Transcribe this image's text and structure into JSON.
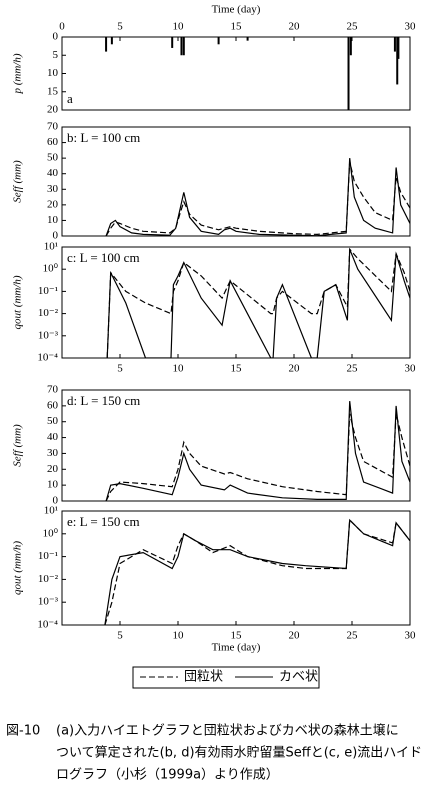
{
  "chart_data": [
    {
      "type": "hyetograph",
      "xlabel": "Time (day)",
      "ylabel": "p (mm/h)",
      "panel_label": "a",
      "xlim": [
        0,
        30
      ],
      "xticks": [
        0,
        5,
        10,
        15,
        20,
        25,
        30
      ],
      "ylim": [
        0,
        20
      ],
      "invert_y": true,
      "yticks": [
        0,
        5,
        10,
        15,
        20
      ],
      "color": "#000000",
      "x": [
        3.8,
        4.3,
        9.5,
        10.3,
        10.5,
        13.5,
        16,
        24.7,
        24.9,
        28.7,
        28.9,
        29.0
      ],
      "values": [
        4,
        2,
        3,
        5,
        5,
        2,
        1,
        20,
        5,
        4,
        13,
        6
      ]
    },
    {
      "type": "line",
      "ylabel": "Seff (mm)",
      "panel_label": "b: L = 100 cm",
      "xlim": [
        0,
        30
      ],
      "ylim": [
        0,
        70
      ],
      "yticks": [
        0,
        10,
        20,
        30,
        40,
        50,
        60,
        70
      ],
      "x": [
        3.8,
        4.2,
        4.6,
        5,
        6,
        7,
        9.3,
        9.8,
        10.2,
        10.5,
        11,
        12,
        13.5,
        14,
        14.5,
        15,
        17,
        20,
        22,
        24.5,
        24.8,
        25.2,
        26,
        27,
        28.5,
        28.8,
        29.2,
        30
      ],
      "series": [
        {
          "name": "団粒状",
          "color": "#000000",
          "dash": true,
          "values": [
            0,
            5,
            9,
            8,
            5,
            3,
            2,
            5,
            15,
            22,
            14,
            7,
            4,
            5,
            6,
            5,
            3,
            1.5,
            1,
            3,
            48,
            35,
            25,
            15,
            10,
            38,
            28,
            18
          ]
        },
        {
          "name": "カベ状",
          "color": "#000000",
          "dash": false,
          "values": [
            0,
            8,
            10,
            6,
            2,
            1,
            0.5,
            5,
            18,
            28,
            12,
            3,
            1,
            4,
            5,
            3,
            1,
            0.5,
            0.2,
            2,
            50,
            25,
            10,
            5,
            2,
            44,
            20,
            8
          ]
        }
      ]
    },
    {
      "type": "line",
      "ylabel": "qout (mm/h)",
      "panel_label": "c: L = 100 cm",
      "log_y": true,
      "xlim": [
        0,
        30
      ],
      "xticks": [
        5,
        10,
        15,
        20,
        25,
        30
      ],
      "ylim": [
        0.0001,
        10
      ],
      "yticks": [
        {
          "value": 10,
          "label": "10¹"
        },
        {
          "value": 1,
          "label": "10⁰"
        },
        {
          "value": 0.1,
          "label": "10⁻¹"
        },
        {
          "value": 0.01,
          "label": "10⁻²"
        },
        {
          "value": 0.001,
          "label": "10⁻³"
        },
        {
          "value": 0.0001,
          "label": "10⁻⁴"
        }
      ],
      "x": [
        3.9,
        4.2,
        5.5,
        7.2,
        9.4,
        9.6,
        10,
        10.5,
        12,
        13.8,
        14.5,
        18,
        18.2,
        18.5,
        19,
        21.5,
        22,
        22.6,
        23.6,
        24.6,
        24.8,
        25.5,
        28.4,
        28.8,
        29.5,
        30
      ],
      "series": [
        {
          "name": "団粒状",
          "color": "#000000",
          "dash": true,
          "values": [
            0.0001,
            0.7,
            0.1,
            0.03,
            0.01,
            0.1,
            0.3,
            2,
            0.5,
            0.05,
            0.3,
            0.01,
            0.01,
            0.05,
            0.1,
            0.01,
            0.01,
            0.1,
            0.2,
            0.02,
            8,
            3,
            0.1,
            5,
            0.7,
            0.1
          ]
        },
        {
          "name": "カベ状",
          "color": "#000000",
          "dash": false,
          "values": [
            0.0001,
            0.7,
            0.03,
            0.0001,
            0.0001,
            0.2,
            0.5,
            2,
            0.05,
            0.003,
            0.3,
            0.0001,
            0.0001,
            0.05,
            0.2,
            0.0001,
            0.0001,
            0.1,
            0.2,
            0.005,
            8,
            1,
            0.005,
            5,
            0.3,
            0.05
          ]
        }
      ]
    },
    {
      "type": "line",
      "ylabel": "Seff (mm)",
      "panel_label": "d: L = 150 cm",
      "xlim": [
        0,
        30
      ],
      "ylim": [
        0,
        70
      ],
      "yticks": [
        0,
        10,
        20,
        30,
        40,
        50,
        60,
        70
      ],
      "x": [
        3.8,
        4.2,
        5,
        7,
        9.5,
        10,
        10.5,
        11,
        12,
        14,
        14.5,
        16,
        19,
        22,
        24.5,
        24.8,
        25.3,
        26,
        28.5,
        28.8,
        29.3,
        30
      ],
      "series": [
        {
          "name": "団粒状",
          "color": "#000000",
          "dash": true,
          "values": [
            0,
            6,
            12,
            11,
            9,
            20,
            37,
            30,
            22,
            17,
            18,
            14,
            9,
            6,
            4,
            55,
            40,
            25,
            15,
            55,
            40,
            22
          ]
        },
        {
          "name": "カベ状",
          "color": "#000000",
          "dash": false,
          "values": [
            0,
            10,
            11,
            8,
            4,
            15,
            30,
            20,
            10,
            7,
            10,
            5,
            2,
            1,
            1,
            63,
            30,
            12,
            5,
            60,
            25,
            12
          ]
        }
      ]
    },
    {
      "type": "line",
      "xlabel": "Time (day)",
      "ylabel": "qout (mm/h)",
      "panel_label": "e: L = 150 cm",
      "log_y": true,
      "xlim": [
        0,
        30
      ],
      "xticks": [
        5,
        10,
        15,
        20,
        25,
        30
      ],
      "ylim": [
        0.0001,
        10
      ],
      "yticks": [
        {
          "value": 10,
          "label": "10¹"
        },
        {
          "value": 1,
          "label": "10⁰"
        },
        {
          "value": 0.1,
          "label": "10⁻¹"
        },
        {
          "value": 0.01,
          "label": "10⁻²"
        },
        {
          "value": 0.001,
          "label": "10⁻³"
        },
        {
          "value": 0.0001,
          "label": "10⁻⁴"
        }
      ],
      "x": [
        3.7,
        4.3,
        5,
        7,
        9.5,
        10,
        10.5,
        11.5,
        13,
        14.5,
        16,
        19,
        21,
        24.5,
        24.8,
        26,
        28.5,
        28.8,
        30
      ],
      "series": [
        {
          "name": "団粒状",
          "color": "#000000",
          "dash": true,
          "values": [
            0.0001,
            0.001,
            0.05,
            0.2,
            0.05,
            0.3,
            1,
            0.5,
            0.15,
            0.3,
            0.1,
            0.04,
            0.03,
            0.03,
            4,
            1,
            0.4,
            3,
            0.5
          ]
        },
        {
          "name": "カベ状",
          "color": "#000000",
          "dash": false,
          "values": [
            0.0001,
            0.01,
            0.1,
            0.15,
            0.03,
            0.1,
            1,
            0.5,
            0.2,
            0.2,
            0.1,
            0.05,
            0.04,
            0.03,
            4,
            1,
            0.3,
            3,
            0.5
          ]
        }
      ]
    }
  ],
  "caption": {
    "label": "図-10",
    "lines": [
      "(a)入力ハイエトグラフと団粒状およびカベ状の森林土壌に",
      "ついて算定された(b, d)有効雨水貯留量Seffと(c, e)流出ハイド",
      "ログラフ（小杉（1999a）より作成）"
    ]
  }
}
